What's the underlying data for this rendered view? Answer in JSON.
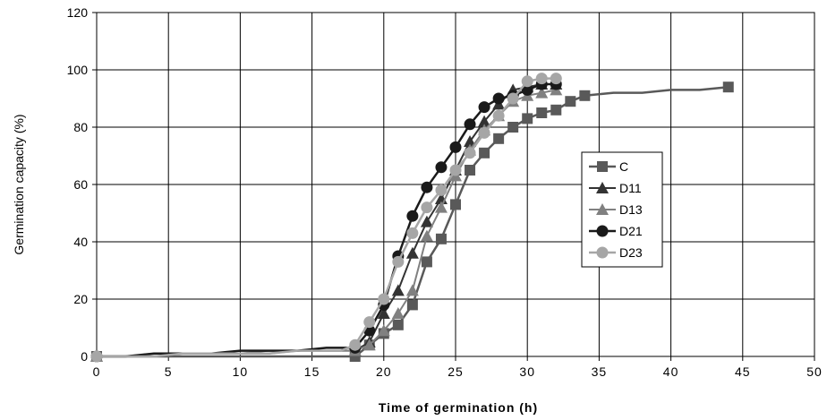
{
  "chart_data": {
    "type": "line",
    "xlabel": "Time of germination (h)",
    "ylabel": "Germination capacity (%)",
    "xlim": [
      0,
      50
    ],
    "ylim": [
      0,
      120
    ],
    "xticks": [
      0,
      5,
      10,
      15,
      20,
      25,
      30,
      35,
      40,
      45,
      50
    ],
    "yticks": [
      0,
      20,
      40,
      60,
      80,
      100,
      120
    ],
    "grid": true,
    "legend_position": "right",
    "series": [
      {
        "name": "C",
        "color": "#595959",
        "marker": "square",
        "line_width": 2.5,
        "x": [
          0,
          2,
          4,
          6,
          8,
          10,
          12,
          14,
          16,
          17,
          18,
          19,
          20,
          21,
          22,
          23,
          24,
          25,
          26,
          27,
          28,
          29,
          30,
          31,
          32,
          33,
          34,
          36,
          38,
          40,
          42,
          44
        ],
        "y": [
          0,
          0,
          0,
          0,
          0,
          0,
          0,
          0,
          0,
          0,
          0,
          4,
          8,
          11,
          18,
          33,
          41,
          53,
          65,
          71,
          76,
          80,
          83,
          85,
          86,
          89,
          91,
          92,
          92,
          93,
          93,
          94
        ],
        "markers_x": [
          0,
          18,
          19,
          20,
          21,
          22,
          23,
          24,
          25,
          26,
          27,
          28,
          29,
          30,
          31,
          32,
          33,
          34,
          44
        ],
        "markers_y": [
          0,
          0,
          4,
          8,
          11,
          18,
          33,
          41,
          53,
          65,
          71,
          76,
          80,
          83,
          85,
          86,
          89,
          91,
          94
        ]
      },
      {
        "name": "D11",
        "color": "#333333",
        "marker": "triangle",
        "line_width": 2,
        "x": [
          0,
          2,
          4,
          6,
          8,
          10,
          12,
          14,
          16,
          17,
          18,
          19,
          20,
          21,
          22,
          23,
          24,
          25,
          26,
          27,
          28,
          29,
          30,
          31,
          32
        ],
        "y": [
          0,
          0,
          0,
          1,
          1,
          1,
          1,
          2,
          2,
          2,
          2,
          5,
          15,
          23,
          36,
          47,
          55,
          65,
          75,
          82,
          88,
          93,
          94,
          95,
          95
        ],
        "markers_x": [
          0,
          18,
          19,
          20,
          21,
          22,
          23,
          24,
          25,
          26,
          27,
          28,
          29,
          30,
          31,
          32
        ],
        "markers_y": [
          0,
          2,
          5,
          15,
          23,
          36,
          47,
          55,
          65,
          75,
          82,
          88,
          93,
          94,
          95,
          95
        ]
      },
      {
        "name": "D13",
        "color": "#808080",
        "marker": "triangle",
        "line_width": 2,
        "x": [
          0,
          2,
          4,
          6,
          8,
          10,
          12,
          14,
          16,
          17,
          18,
          19,
          20,
          21,
          22,
          23,
          24,
          25,
          26,
          27,
          28,
          29,
          30,
          31,
          32
        ],
        "y": [
          0,
          0,
          1,
          1,
          1,
          1,
          2,
          2,
          2,
          2,
          2,
          4,
          9,
          15,
          23,
          42,
          52,
          63,
          72,
          79,
          84,
          89,
          91,
          92,
          93
        ],
        "markers_x": [
          0,
          18,
          19,
          20,
          21,
          22,
          23,
          24,
          25,
          26,
          27,
          28,
          29,
          30,
          31,
          32
        ],
        "markers_y": [
          0,
          2,
          4,
          9,
          15,
          23,
          42,
          52,
          63,
          72,
          79,
          84,
          89,
          91,
          92,
          93
        ]
      },
      {
        "name": "D21",
        "color": "#1a1a1a",
        "marker": "circle",
        "line_width": 2.5,
        "x": [
          0,
          2,
          4,
          6,
          8,
          10,
          12,
          14,
          16,
          17,
          18,
          19,
          20,
          21,
          22,
          23,
          24,
          25,
          26,
          27,
          28,
          29,
          30,
          31,
          32
        ],
        "y": [
          0,
          0,
          1,
          1,
          1,
          2,
          2,
          2,
          3,
          3,
          3,
          9,
          18,
          35,
          49,
          59,
          66,
          73,
          81,
          87,
          90,
          91,
          93,
          95,
          95
        ],
        "markers_x": [
          0,
          18,
          19,
          20,
          21,
          22,
          23,
          24,
          25,
          26,
          27,
          28,
          29,
          30,
          31,
          32
        ],
        "markers_y": [
          0,
          3,
          9,
          18,
          35,
          49,
          59,
          66,
          73,
          81,
          87,
          90,
          91,
          93,
          95,
          95
        ]
      },
      {
        "name": "D23",
        "color": "#a6a6a6",
        "marker": "circle",
        "line_width": 2.5,
        "x": [
          0,
          2,
          4,
          6,
          8,
          10,
          12,
          14,
          16,
          17,
          18,
          19,
          20,
          21,
          22,
          23,
          24,
          25,
          26,
          27,
          28,
          29,
          30,
          31,
          32
        ],
        "y": [
          0,
          0,
          0,
          1,
          1,
          1,
          1,
          2,
          2,
          2,
          4,
          12,
          20,
          33,
          43,
          52,
          58,
          65,
          71,
          78,
          84,
          90,
          96,
          97,
          97
        ],
        "markers_x": [
          0,
          18,
          19,
          20,
          21,
          22,
          23,
          24,
          25,
          26,
          27,
          28,
          29,
          30,
          31,
          32
        ],
        "markers_y": [
          0,
          4,
          12,
          20,
          33,
          43,
          52,
          58,
          65,
          71,
          78,
          84,
          90,
          96,
          97,
          97
        ]
      }
    ]
  }
}
